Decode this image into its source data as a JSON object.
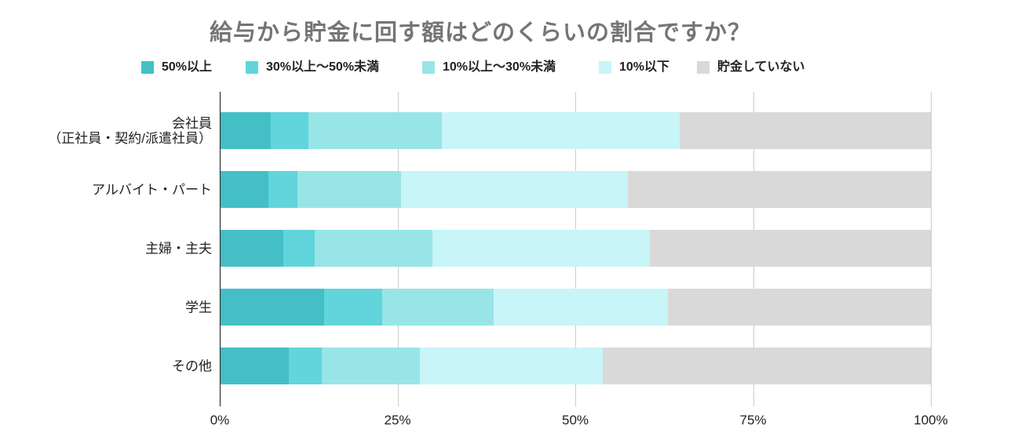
{
  "chart_data": {
    "type": "bar",
    "horizontal": true,
    "stacked": true,
    "normalized_100": true,
    "title": "給与から貯金に回す額はどのくらいの割合ですか？",
    "categories": [
      "会社員\n（正社員・契約/派遣社員）",
      "アルバイト・パート",
      "主婦・主夫",
      "学生",
      "その他"
    ],
    "series": [
      {
        "name": "50%以上",
        "color": "#45BFC6",
        "values": [
          7.2,
          6.8,
          8.9,
          14.7,
          9.7
        ]
      },
      {
        "name": "30%以上〜50%未満",
        "color": "#61D5DB",
        "values": [
          5.3,
          4.1,
          4.5,
          8.2,
          4.6
        ]
      },
      {
        "name": "10%以上〜30%未満",
        "color": "#98E5E8",
        "values": [
          18.7,
          14.6,
          16.5,
          15.6,
          13.9
        ]
      },
      {
        "name": "10%以下",
        "color": "#C8F5F7",
        "values": [
          33.5,
          31.9,
          30.6,
          24.5,
          25.7
        ]
      },
      {
        "name": "貯金していない",
        "color": "#D9D9D9",
        "values": [
          35.3,
          42.6,
          39.5,
          37.0,
          46.1
        ]
      }
    ],
    "xlim": [
      0,
      100
    ],
    "x_ticks": [
      0,
      25,
      50,
      75,
      100
    ],
    "x_tick_labels": [
      "0%",
      "25%",
      "50%",
      "75%",
      "100%"
    ],
    "legend_position": "top",
    "grid": true,
    "colors": {
      "title": "#757575",
      "gridline": "#CCCCCC",
      "axis": "#333333"
    }
  }
}
